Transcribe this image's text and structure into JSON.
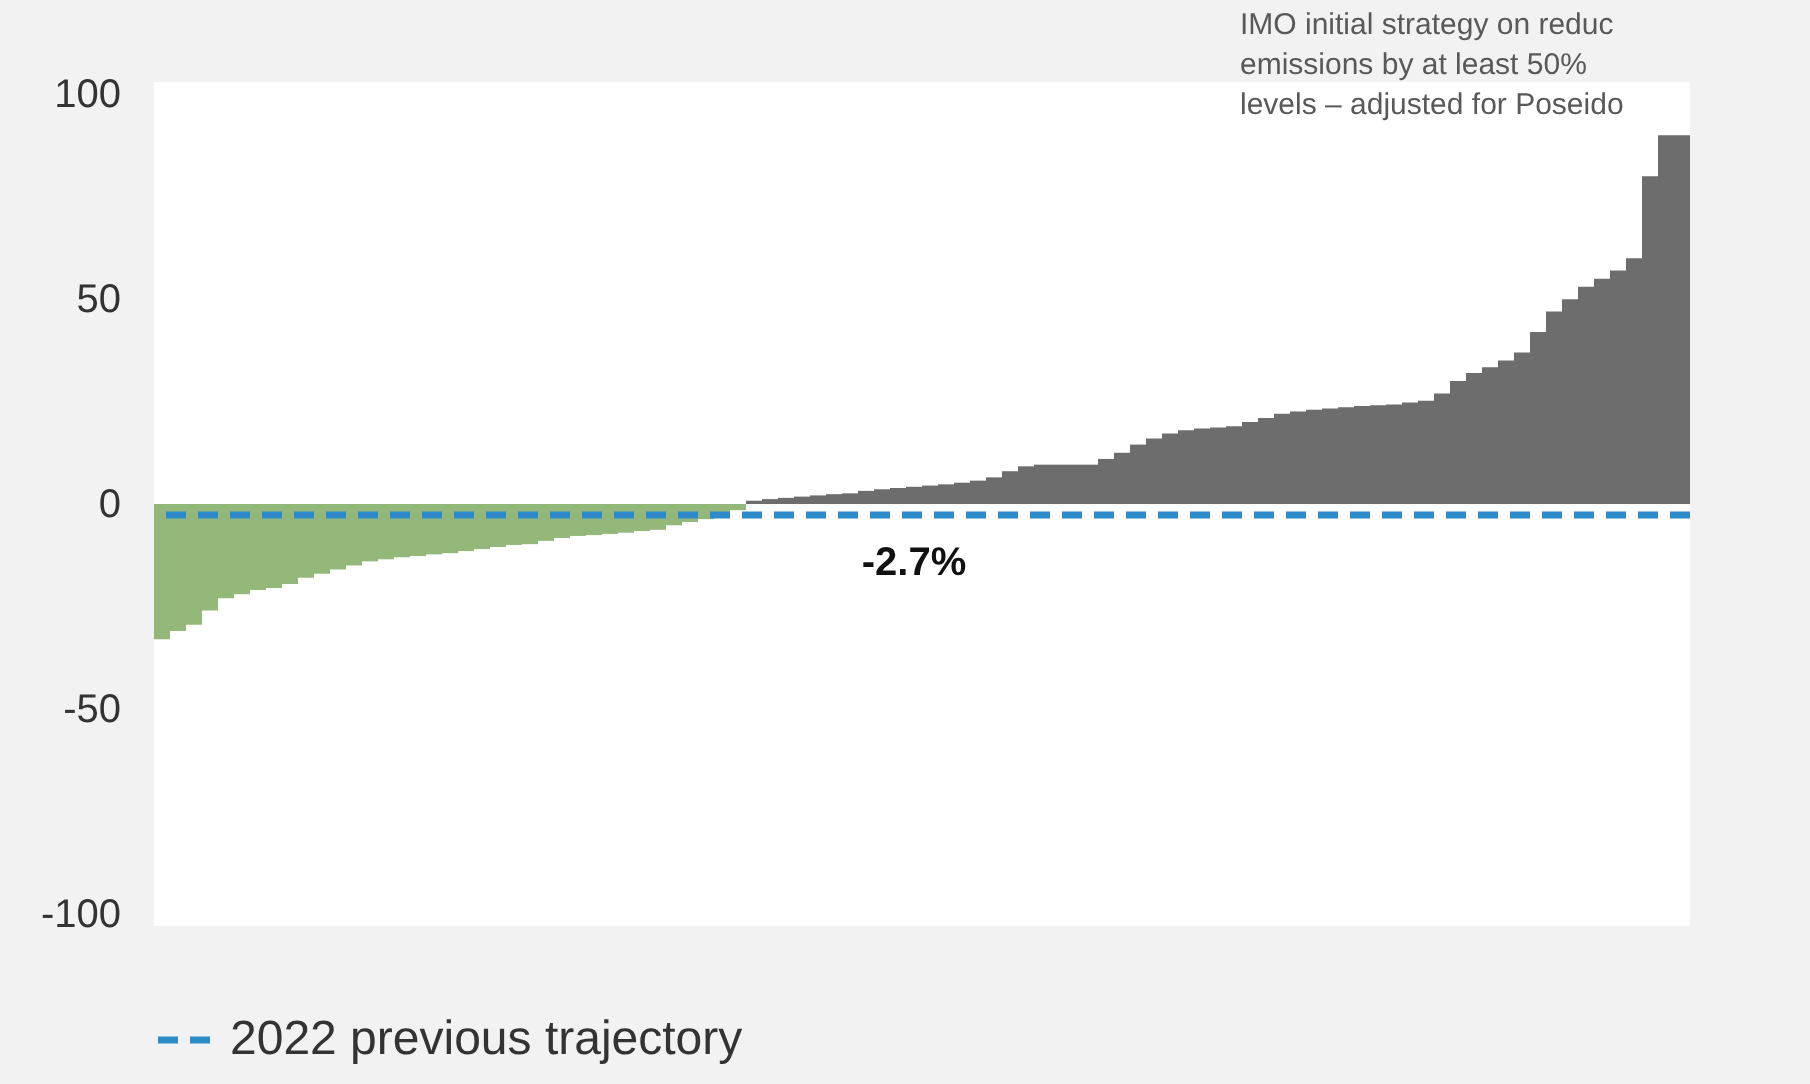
{
  "chart_data": {
    "type": "bar",
    "categories": [
      null,
      null,
      null,
      null,
      null,
      null,
      null,
      null,
      null,
      null,
      null,
      null,
      null,
      null,
      null,
      null,
      null,
      null,
      null,
      null,
      null,
      null,
      null,
      null,
      null,
      null,
      null,
      null,
      null,
      null,
      null,
      null,
      null,
      null,
      null,
      null,
      null,
      null,
      null,
      null,
      null,
      null,
      null,
      null,
      null,
      null,
      null,
      null,
      null,
      null,
      null,
      null,
      null,
      null,
      null,
      null,
      null,
      null,
      null,
      null,
      null,
      null,
      null,
      null,
      null,
      null,
      null,
      null,
      null,
      null,
      null,
      null,
      null,
      null,
      null,
      null,
      null,
      null,
      null,
      null,
      null,
      null,
      null,
      null,
      null,
      null,
      null,
      null,
      null,
      null,
      null,
      null,
      null,
      null,
      null,
      null
    ],
    "values": [
      -33,
      -31,
      -29.5,
      -26,
      -23,
      -22,
      -21,
      -20.5,
      -19.5,
      -18,
      -17,
      -16,
      -15,
      -14,
      -13.5,
      -13,
      -12.7,
      -12.3,
      -12,
      -11.5,
      -11,
      -10.5,
      -10,
      -9.8,
      -9,
      -8.3,
      -7.8,
      -7.6,
      -7.3,
      -7,
      -6.6,
      -6.3,
      -5.2,
      -4.4,
      -3.7,
      -2.8,
      -1.5,
      0.8,
      1.2,
      1.5,
      1.8,
      2.1,
      2.4,
      2.6,
      3.2,
      3.6,
      3.9,
      4.2,
      4.5,
      4.8,
      5.2,
      5.7,
      6.5,
      8,
      9.2,
      9.6,
      9.6,
      9.6,
      9.6,
      11,
      12.5,
      14.5,
      16,
      17.2,
      18,
      18.4,
      18.7,
      19,
      20,
      21,
      22,
      22.6,
      23,
      23.3,
      23.6,
      23.9,
      24.1,
      24.3,
      24.8,
      25.2,
      27,
      30,
      32,
      33.4,
      35,
      37,
      42,
      47,
      50,
      53,
      55,
      57,
      60,
      80,
      90,
      90
    ],
    "colors": [
      "#94b87a",
      "#94b87a",
      "#94b87a",
      "#94b87a",
      "#94b87a",
      "#94b87a",
      "#94b87a",
      "#94b87a",
      "#94b87a",
      "#94b87a",
      "#94b87a",
      "#94b87a",
      "#94b87a",
      "#94b87a",
      "#94b87a",
      "#94b87a",
      "#94b87a",
      "#94b87a",
      "#94b87a",
      "#94b87a",
      "#94b87a",
      "#94b87a",
      "#94b87a",
      "#94b87a",
      "#94b87a",
      "#94b87a",
      "#94b87a",
      "#94b87a",
      "#94b87a",
      "#94b87a",
      "#94b87a",
      "#94b87a",
      "#94b87a",
      "#94b87a",
      "#94b87a",
      "#94b87a",
      "#94b87a",
      "#6d6d6d",
      "#6d6d6d",
      "#6d6d6d",
      "#6d6d6d",
      "#6d6d6d",
      "#6d6d6d",
      "#6d6d6d",
      "#6d6d6d",
      "#6d6d6d",
      "#6d6d6d",
      "#6d6d6d",
      "#6d6d6d",
      "#6d6d6d",
      "#6d6d6d",
      "#6d6d6d",
      "#6d6d6d",
      "#6d6d6d",
      "#6d6d6d",
      "#6d6d6d",
      "#6d6d6d",
      "#6d6d6d",
      "#6d6d6d",
      "#6d6d6d",
      "#6d6d6d",
      "#6d6d6d",
      "#6d6d6d",
      "#6d6d6d",
      "#6d6d6d",
      "#6d6d6d",
      "#6d6d6d",
      "#6d6d6d",
      "#6d6d6d",
      "#6d6d6d",
      "#6d6d6d",
      "#6d6d6d",
      "#6d6d6d",
      "#6d6d6d",
      "#6d6d6d",
      "#6d6d6d",
      "#6d6d6d",
      "#6d6d6d",
      "#6d6d6d",
      "#6d6d6d",
      "#6d6d6d",
      "#6d6d6d",
      "#6d6d6d",
      "#6d6d6d",
      "#6d6d6d",
      "#6d6d6d",
      "#6d6d6d",
      "#6d6d6d",
      "#6d6d6d",
      "#6d6d6d",
      "#6d6d6d",
      "#6d6d6d",
      "#6d6d6d",
      "#6d6d6d",
      "#6d6d6d",
      "#6d6d6d"
    ],
    "ylim": [
      -103,
      103
    ],
    "yticks": [
      -100,
      -50,
      0,
      50,
      100
    ],
    "grid": false,
    "ref_lines": [
      {
        "axis": "y",
        "value": -2.7,
        "label": "2022 previous trajectory",
        "color": "#2e8bc9",
        "line_style": "dashed"
      }
    ],
    "legend": "bottom",
    "annotations": [
      {
        "text": "-2.7%",
        "y": -2.7
      },
      "IMO initial strategy on reduc",
      "emissions by at least 50%",
      "levels – adjusted for Poseido"
    ]
  }
}
